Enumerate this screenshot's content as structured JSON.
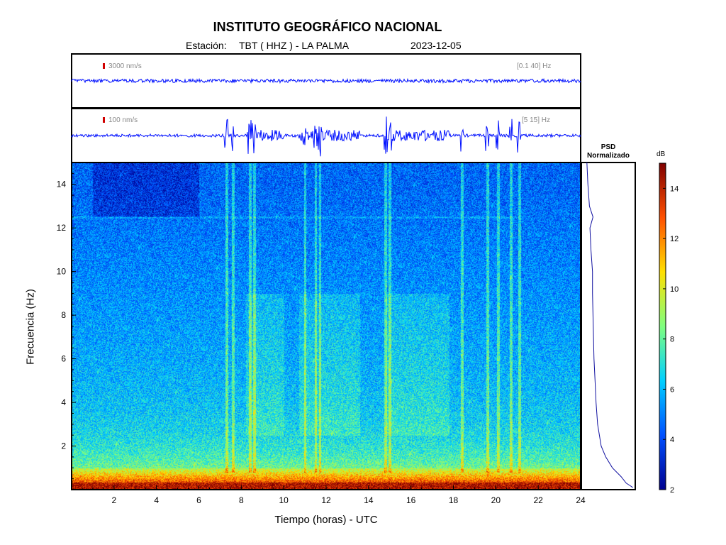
{
  "header": {
    "institution": "INSTITUTO GEOGRÁFICO NACIONAL",
    "station_prefix": "Estación:",
    "station": "TBT ( HHZ ) - LA PALMA",
    "date": "2023-12-05"
  },
  "traces": [
    {
      "scale": "3000 nm/s",
      "band": "[0.1 40] Hz"
    },
    {
      "scale": "100 nm/s",
      "band": "[5 15] Hz"
    }
  ],
  "psd_panel": {
    "title_line1": "PSD",
    "title_line2": "Normalizado"
  },
  "colorbar": {
    "unit": "dB",
    "ticks": [
      2,
      4,
      6,
      8,
      10,
      12,
      14
    ],
    "range": [
      2,
      15
    ],
    "colormap": [
      "#00008f",
      "#0050ff",
      "#00cfff",
      "#7fff7f",
      "#ffdf00",
      "#ff5000",
      "#800000"
    ]
  },
  "chart_data": {
    "type": "heatmap",
    "xlabel": "Tiempo (horas) - UTC",
    "ylabel": "Frecuencia  (Hz)",
    "xlim": [
      0,
      24
    ],
    "ylim": [
      0,
      15
    ],
    "xticks": [
      2,
      4,
      6,
      8,
      10,
      12,
      14,
      16,
      18,
      20,
      22,
      24
    ],
    "yticks": [
      2,
      4,
      6,
      8,
      10,
      12,
      14
    ],
    "dominant_band_hz": [
      0,
      1
    ],
    "active_windows_hours": [
      [
        8.2,
        10.0
      ],
      [
        10.7,
        13.6
      ],
      [
        14.8,
        17.8
      ]
    ],
    "event_times_hours": [
      7.3,
      7.6,
      8.4,
      8.6,
      11.0,
      11.5,
      11.7,
      14.8,
      15.0,
      18.4,
      19.6,
      20.1,
      20.7,
      21.1
    ],
    "line_frequency_hz": 12.5,
    "psd_profile": [
      {
        "f": 15.0,
        "level": 0.08
      },
      {
        "f": 14.0,
        "level": 0.1
      },
      {
        "f": 13.0,
        "level": 0.13
      },
      {
        "f": 12.5,
        "level": 0.2
      },
      {
        "f": 12.0,
        "level": 0.14
      },
      {
        "f": 11.0,
        "level": 0.16
      },
      {
        "f": 10.0,
        "level": 0.19
      },
      {
        "f": 9.0,
        "level": 0.19
      },
      {
        "f": 8.0,
        "level": 0.2
      },
      {
        "f": 7.0,
        "level": 0.21
      },
      {
        "f": 6.0,
        "level": 0.22
      },
      {
        "f": 5.0,
        "level": 0.24
      },
      {
        "f": 4.0,
        "level": 0.26
      },
      {
        "f": 3.0,
        "level": 0.29
      },
      {
        "f": 2.0,
        "level": 0.36
      },
      {
        "f": 1.5,
        "level": 0.45
      },
      {
        "f": 1.0,
        "level": 0.58
      },
      {
        "f": 0.6,
        "level": 0.75
      },
      {
        "f": 0.3,
        "level": 0.85
      },
      {
        "f": 0.1,
        "level": 0.98
      }
    ]
  }
}
